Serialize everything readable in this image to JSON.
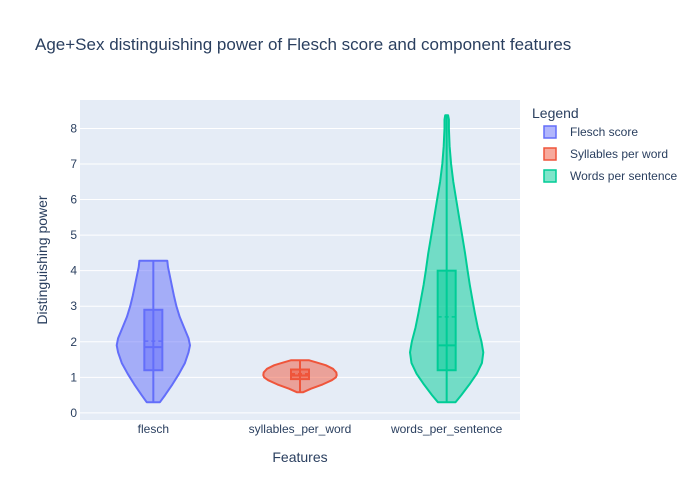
{
  "chart_data": {
    "type": "violin",
    "title": "Age+Sex distinguishing power of Flesch score and component features",
    "xlabel": "Features",
    "ylabel": "Distinguishing power",
    "categories": [
      "flesch",
      "syllables_per_word",
      "words_per_sentence"
    ],
    "ylim": [
      -0.2,
      8.8
    ],
    "yticks": [
      0,
      1,
      2,
      3,
      4,
      5,
      6,
      7,
      8
    ],
    "grid": true,
    "legend": {
      "title": "Legend",
      "position": "top-right"
    },
    "series": [
      {
        "name": "Flesch score",
        "category": "flesch",
        "color": "#636efa",
        "min": 0.3,
        "q1": 1.2,
        "median": 1.85,
        "mean": 2.02,
        "q3": 2.9,
        "max": 4.28,
        "profile": [
          [
            0.3,
            0.18
          ],
          [
            0.5,
            0.32
          ],
          [
            0.8,
            0.52
          ],
          [
            1.1,
            0.7
          ],
          [
            1.4,
            0.86
          ],
          [
            1.7,
            0.96
          ],
          [
            1.9,
            1.0
          ],
          [
            2.1,
            0.96
          ],
          [
            2.4,
            0.84
          ],
          [
            2.7,
            0.72
          ],
          [
            3.0,
            0.63
          ],
          [
            3.3,
            0.56
          ],
          [
            3.6,
            0.5
          ],
          [
            3.9,
            0.44
          ],
          [
            4.1,
            0.4
          ],
          [
            4.28,
            0.38
          ]
        ]
      },
      {
        "name": "Syllables per word",
        "category": "syllables_per_word",
        "color": "#ef553b",
        "min": 0.58,
        "q1": 0.95,
        "median": 1.05,
        "mean": 1.1,
        "q3": 1.22,
        "max": 1.48,
        "profile": [
          [
            0.58,
            0.08
          ],
          [
            0.68,
            0.3
          ],
          [
            0.8,
            0.62
          ],
          [
            0.92,
            0.87
          ],
          [
            1.0,
            0.98
          ],
          [
            1.06,
            1.0
          ],
          [
            1.14,
            0.99
          ],
          [
            1.24,
            0.9
          ],
          [
            1.34,
            0.7
          ],
          [
            1.42,
            0.45
          ],
          [
            1.48,
            0.25
          ]
        ]
      },
      {
        "name": "Words per sentence",
        "category": "words_per_sentence",
        "color": "#00cc96",
        "min": 0.3,
        "q1": 1.2,
        "median": 1.9,
        "mean": 2.7,
        "q3": 4.0,
        "max": 8.37,
        "profile": [
          [
            0.3,
            0.24
          ],
          [
            0.5,
            0.4
          ],
          [
            0.8,
            0.62
          ],
          [
            1.1,
            0.82
          ],
          [
            1.4,
            0.96
          ],
          [
            1.7,
            1.0
          ],
          [
            2.0,
            0.95
          ],
          [
            2.4,
            0.85
          ],
          [
            2.8,
            0.77
          ],
          [
            3.2,
            0.7
          ],
          [
            3.6,
            0.63
          ],
          [
            4.0,
            0.57
          ],
          [
            4.5,
            0.5
          ],
          [
            5.0,
            0.42
          ],
          [
            5.5,
            0.34
          ],
          [
            6.0,
            0.26
          ],
          [
            6.5,
            0.18
          ],
          [
            7.0,
            0.12
          ],
          [
            7.5,
            0.08
          ],
          [
            8.0,
            0.06
          ],
          [
            8.25,
            0.06
          ],
          [
            8.37,
            0.04
          ]
        ]
      }
    ]
  }
}
